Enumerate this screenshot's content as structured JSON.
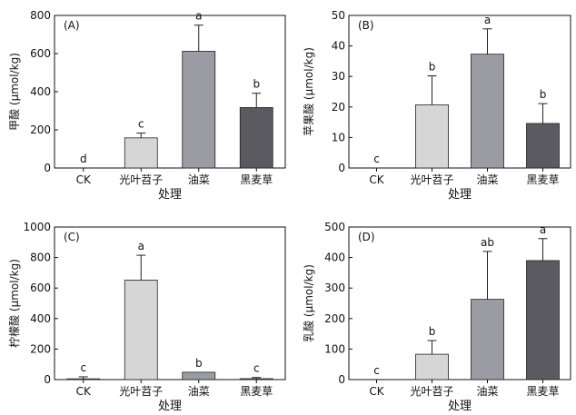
{
  "colors": {
    "axis": "#111111",
    "bars": [
      "#ffffff",
      "#d6d6d6",
      "#9b9ba4",
      "#5b5a60"
    ]
  },
  "chart_data": [
    {
      "type": "bar",
      "panel_label": "(A)",
      "ylabel": "甲酸 (μmol/kg)",
      "xlabel": "处理",
      "categories": [
        "CK",
        "光叶苕子",
        "油菜",
        "黑麦草"
      ],
      "values": [
        0,
        158,
        612,
        317
      ],
      "errors": [
        0,
        25,
        137,
        75
      ],
      "sig_letters": [
        "d",
        "c",
        "a",
        "b"
      ],
      "ylim": [
        0,
        800
      ],
      "yticks": [
        "0",
        "200",
        "400",
        "600",
        "800"
      ]
    },
    {
      "type": "bar",
      "panel_label": "(B)",
      "ylabel": "苹果酸 (μmol/kg)",
      "xlabel": "处理",
      "categories": [
        "CK",
        "光叶苕子",
        "油菜",
        "黑麦草"
      ],
      "values": [
        0,
        20.7,
        37.3,
        14.6
      ],
      "errors": [
        0,
        9.5,
        8.3,
        6.5
      ],
      "sig_letters": [
        "c",
        "b",
        "a",
        "b"
      ],
      "ylim": [
        0,
        50
      ],
      "yticks": [
        "0",
        "10",
        "20",
        "30",
        "40",
        "50"
      ]
    },
    {
      "type": "bar",
      "panel_label": "(C)",
      "ylabel": "柠檬酸 (μmol/kg)",
      "xlabel": "处理",
      "categories": [
        "CK",
        "光叶苕子",
        "油菜",
        "黑麦草"
      ],
      "values": [
        5,
        652,
        48,
        6
      ],
      "errors": [
        13,
        163,
        0,
        8
      ],
      "sig_letters": [
        "c",
        "a",
        "b",
        "c"
      ],
      "ylim": [
        0,
        1000
      ],
      "yticks": [
        "0",
        "200",
        "400",
        "600",
        "800",
        "1000"
      ]
    },
    {
      "type": "bar",
      "panel_label": "(D)",
      "ylabel": "乳酸 (μmol/kg)",
      "xlabel": "处理",
      "categories": [
        "CK",
        "光叶苕子",
        "油菜",
        "黑麦草"
      ],
      "values": [
        0,
        83,
        263,
        390
      ],
      "errors": [
        0,
        45,
        157,
        72
      ],
      "sig_letters": [
        "c",
        "b",
        "ab",
        "a"
      ],
      "ylim": [
        0,
        500
      ],
      "yticks": [
        "0",
        "100",
        "200",
        "300",
        "400",
        "500"
      ]
    }
  ]
}
